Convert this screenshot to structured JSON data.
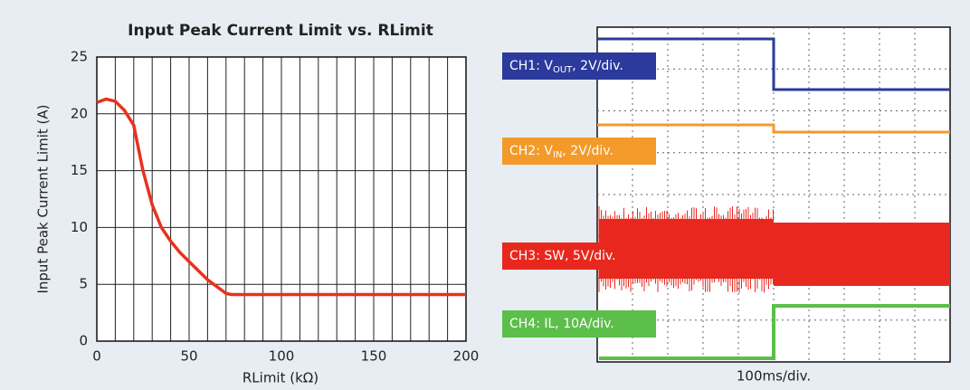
{
  "chart_data": {
    "type": "line",
    "title": "Input Peak Current Limit vs. RLimit",
    "x_label": "RLimit (kΩ)",
    "y_label": "Input Peak Current Limit (A)",
    "x": [
      0,
      5,
      10,
      15,
      20,
      25,
      30,
      35,
      40,
      45,
      50,
      55,
      60,
      65,
      70,
      73,
      100,
      150,
      200
    ],
    "series": [
      {
        "color": "#e8321e",
        "values": [
          21,
          21.3,
          21.1,
          20.3,
          19,
          15,
          12,
          10,
          8.8,
          7.8,
          7,
          6.2,
          5.4,
          4.8,
          4.2,
          4.1,
          4.1,
          4.1,
          4.1
        ]
      }
    ],
    "xlim": [
      0,
      200
    ],
    "ylim": [
      0,
      25
    ],
    "xticks": [
      0,
      50,
      100,
      150,
      200
    ],
    "yticks": [
      0,
      5,
      10,
      15,
      20,
      25
    ],
    "x_gridlines": [
      10,
      20,
      30,
      40,
      60,
      70,
      80,
      90,
      110,
      120,
      130,
      140,
      160,
      170,
      180,
      190
    ],
    "grid": true
  },
  "scope": {
    "channels": [
      {
        "prefix": "CH1: V",
        "sub": "OUT",
        "suffix": ", 2V/div.",
        "color": "#2b3a9b"
      },
      {
        "prefix": "CH2: V",
        "sub": "IN",
        "suffix": ", 2V/div.",
        "color": "#f39a2a"
      },
      {
        "prefix": "CH3: SW, 5V/div.",
        "sub": "",
        "suffix": "",
        "color": "#e8281e"
      },
      {
        "prefix": "CH4: IL, 10A/div.",
        "sub": "",
        "suffix": "",
        "color": "#5cbf4a"
      }
    ],
    "timebase": "100ms/div."
  }
}
